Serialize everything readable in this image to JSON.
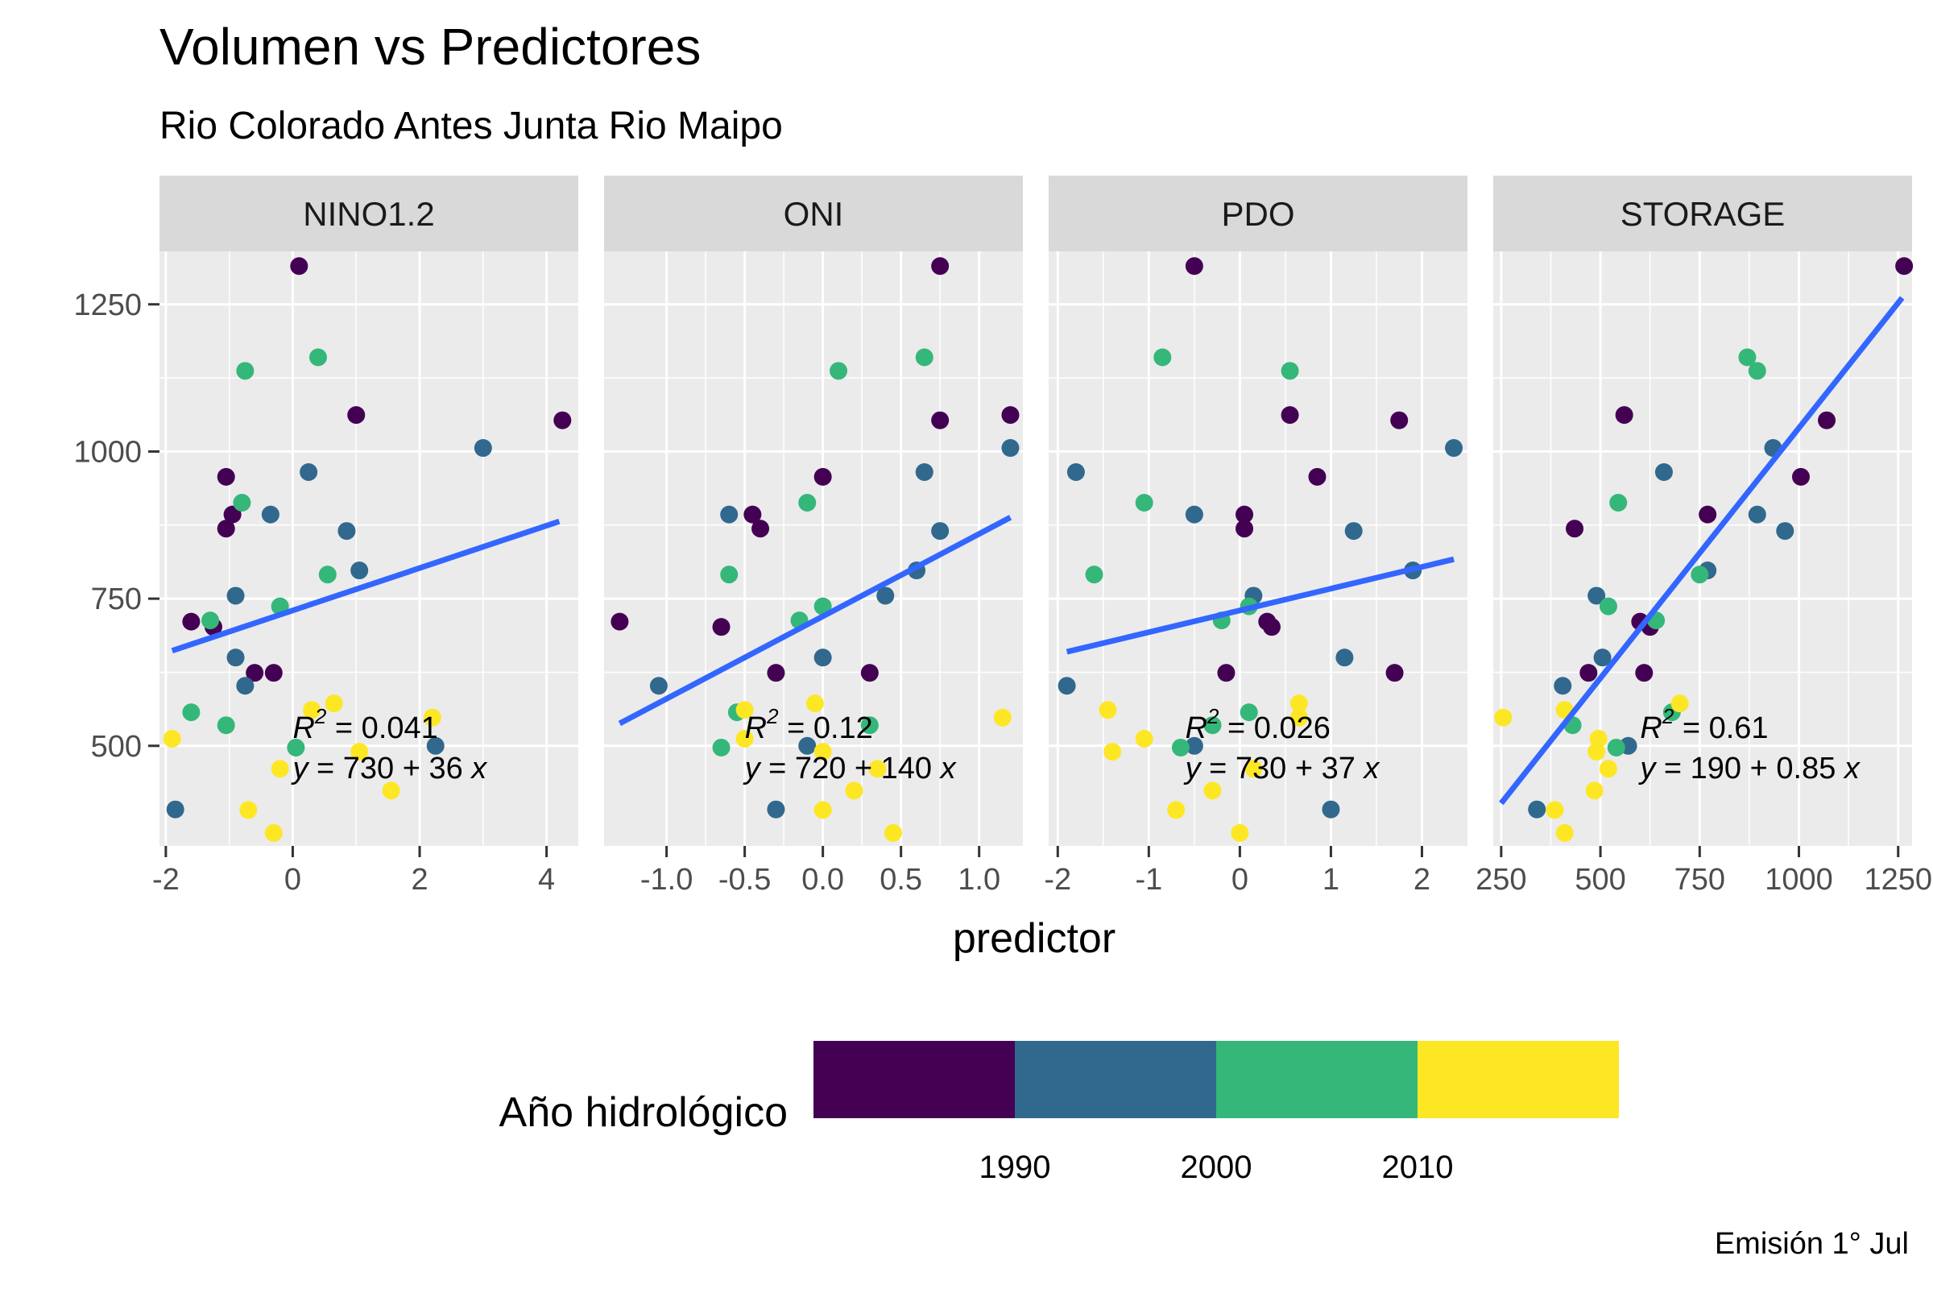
{
  "chart_data": {
    "type": "scatter",
    "title": "Volumen vs Predictores",
    "subtitle": "Rio Colorado Antes Junta Rio Maipo",
    "xlabel": "predictor",
    "ylabel": "",
    "caption": "Emisión 1° Jul",
    "ylim": [
      330,
      1340
    ],
    "yticks": [
      500,
      750,
      1000,
      1250
    ],
    "ytick_labels": [
      "500",
      "750",
      "1000",
      "1250"
    ],
    "grid": true,
    "colors": {
      "c1980": "#440154",
      "c1990": "#31688e",
      "c2000": "#35b779",
      "c2010": "#fde725",
      "line": "#3366ff",
      "panel": "#ebebeb",
      "strip": "#d9d9d9"
    },
    "legend": {
      "title": "Año hidrológico",
      "placement": "bottom",
      "breaks": [
        "1990",
        "2000",
        "2010"
      ],
      "bins": [
        "c1980",
        "c1990",
        "c2000",
        "c2010"
      ]
    },
    "panels": [
      {
        "name": "NINO1.2",
        "xlim": [
          -2.1,
          4.5
        ],
        "xticks": [
          -2,
          0,
          2,
          4
        ],
        "xtick_labels": [
          "-2",
          "0",
          "2",
          "4"
        ],
        "fit_x": [
          -1.9,
          4.2
        ],
        "intercept": 730,
        "slope": 36,
        "r2_label": "= 0.041",
        "eq_label": "= 730 + 36 x",
        "annot_x": 0.0,
        "points": [
          {
            "x": 0.1,
            "y": 1315,
            "c": "c1980"
          },
          {
            "x": 4.25,
            "y": 1053,
            "c": "c1980"
          },
          {
            "x": 1.0,
            "y": 1062,
            "c": "c1980"
          },
          {
            "x": -1.05,
            "y": 957,
            "c": "c1980"
          },
          {
            "x": -0.95,
            "y": 893,
            "c": "c1980"
          },
          {
            "x": -1.05,
            "y": 869,
            "c": "c1980"
          },
          {
            "x": -1.6,
            "y": 711,
            "c": "c1980"
          },
          {
            "x": -1.25,
            "y": 702,
            "c": "c1980"
          },
          {
            "x": -0.6,
            "y": 624,
            "c": "c1980"
          },
          {
            "x": -0.3,
            "y": 624,
            "c": "c1980"
          },
          {
            "x": 3.0,
            "y": 1006,
            "c": "c1990"
          },
          {
            "x": 0.25,
            "y": 965,
            "c": "c1990"
          },
          {
            "x": -0.35,
            "y": 893,
            "c": "c1990"
          },
          {
            "x": 0.85,
            "y": 865,
            "c": "c1990"
          },
          {
            "x": 1.05,
            "y": 798,
            "c": "c1990"
          },
          {
            "x": -0.9,
            "y": 755,
            "c": "c1990"
          },
          {
            "x": -0.9,
            "y": 650,
            "c": "c1990"
          },
          {
            "x": -0.75,
            "y": 602,
            "c": "c1990"
          },
          {
            "x": 2.25,
            "y": 500,
            "c": "c1990"
          },
          {
            "x": -1.85,
            "y": 392,
            "c": "c1990"
          },
          {
            "x": 0.4,
            "y": 1160,
            "c": "c2000"
          },
          {
            "x": -0.75,
            "y": 1137,
            "c": "c2000"
          },
          {
            "x": -0.8,
            "y": 913,
            "c": "c2000"
          },
          {
            "x": 0.55,
            "y": 791,
            "c": "c2000"
          },
          {
            "x": -0.2,
            "y": 737,
            "c": "c2000"
          },
          {
            "x": -1.3,
            "y": 713,
            "c": "c2000"
          },
          {
            "x": -1.6,
            "y": 557,
            "c": "c2000"
          },
          {
            "x": -1.05,
            "y": 535,
            "c": "c2000"
          },
          {
            "x": 0.05,
            "y": 497,
            "c": "c2000"
          },
          {
            "x": 0.65,
            "y": 572,
            "c": "c2010"
          },
          {
            "x": 0.3,
            "y": 561,
            "c": "c2010"
          },
          {
            "x": 2.2,
            "y": 548,
            "c": "c2010"
          },
          {
            "x": -1.9,
            "y": 512,
            "c": "c2010"
          },
          {
            "x": 1.05,
            "y": 490,
            "c": "c2010"
          },
          {
            "x": -0.2,
            "y": 461,
            "c": "c2010"
          },
          {
            "x": 1.55,
            "y": 424,
            "c": "c2010"
          },
          {
            "x": -0.7,
            "y": 391,
            "c": "c2010"
          },
          {
            "x": -0.3,
            "y": 352,
            "c": "c2010"
          }
        ]
      },
      {
        "name": "ONI",
        "xlim": [
          -1.4,
          1.28
        ],
        "xticks": [
          -1.0,
          -0.5,
          0.0,
          0.5,
          1.0
        ],
        "xtick_labels": [
          "-1.0",
          "-0.5",
          "0.0",
          "0.5",
          "1.0"
        ],
        "fit_x": [
          -1.3,
          1.2
        ],
        "intercept": 720,
        "slope": 140,
        "r2_label": "= 0.12",
        "eq_label": "= 720 + 140 x",
        "annot_x": -0.5,
        "points": [
          {
            "x": 0.75,
            "y": 1315,
            "c": "c1980"
          },
          {
            "x": 1.2,
            "y": 1062,
            "c": "c1980"
          },
          {
            "x": 0.75,
            "y": 1053,
            "c": "c1980"
          },
          {
            "x": 0.0,
            "y": 957,
            "c": "c1980"
          },
          {
            "x": -0.45,
            "y": 893,
            "c": "c1980"
          },
          {
            "x": -0.4,
            "y": 869,
            "c": "c1980"
          },
          {
            "x": -1.3,
            "y": 711,
            "c": "c1980"
          },
          {
            "x": -0.65,
            "y": 702,
            "c": "c1980"
          },
          {
            "x": -0.3,
            "y": 624,
            "c": "c1980"
          },
          {
            "x": 0.3,
            "y": 624,
            "c": "c1980"
          },
          {
            "x": 1.2,
            "y": 1006,
            "c": "c1990"
          },
          {
            "x": 0.65,
            "y": 965,
            "c": "c1990"
          },
          {
            "x": -0.6,
            "y": 893,
            "c": "c1990"
          },
          {
            "x": 0.75,
            "y": 865,
            "c": "c1990"
          },
          {
            "x": 0.6,
            "y": 798,
            "c": "c1990"
          },
          {
            "x": 0.4,
            "y": 755,
            "c": "c1990"
          },
          {
            "x": 0.0,
            "y": 650,
            "c": "c1990"
          },
          {
            "x": -1.05,
            "y": 602,
            "c": "c1990"
          },
          {
            "x": -0.1,
            "y": 500,
            "c": "c1990"
          },
          {
            "x": -0.3,
            "y": 392,
            "c": "c1990"
          },
          {
            "x": 0.65,
            "y": 1160,
            "c": "c2000"
          },
          {
            "x": 0.1,
            "y": 1137,
            "c": "c2000"
          },
          {
            "x": -0.1,
            "y": 913,
            "c": "c2000"
          },
          {
            "x": -0.6,
            "y": 791,
            "c": "c2000"
          },
          {
            "x": 0.0,
            "y": 737,
            "c": "c2000"
          },
          {
            "x": -0.15,
            "y": 713,
            "c": "c2000"
          },
          {
            "x": -0.55,
            "y": 557,
            "c": "c2000"
          },
          {
            "x": 0.3,
            "y": 535,
            "c": "c2000"
          },
          {
            "x": -0.65,
            "y": 497,
            "c": "c2000"
          },
          {
            "x": -0.05,
            "y": 572,
            "c": "c2010"
          },
          {
            "x": -0.5,
            "y": 561,
            "c": "c2010"
          },
          {
            "x": 1.15,
            "y": 548,
            "c": "c2010"
          },
          {
            "x": -0.5,
            "y": 512,
            "c": "c2010"
          },
          {
            "x": 0.0,
            "y": 490,
            "c": "c2010"
          },
          {
            "x": 0.35,
            "y": 461,
            "c": "c2010"
          },
          {
            "x": 0.2,
            "y": 424,
            "c": "c2010"
          },
          {
            "x": 0.0,
            "y": 391,
            "c": "c2010"
          },
          {
            "x": 0.45,
            "y": 352,
            "c": "c2010"
          }
        ]
      },
      {
        "name": "PDO",
        "xlim": [
          -2.1,
          2.5
        ],
        "xticks": [
          -2,
          -1,
          0,
          1,
          2
        ],
        "xtick_labels": [
          "-2",
          "-1",
          "0",
          "1",
          "2"
        ],
        "fit_x": [
          -1.9,
          2.35
        ],
        "intercept": 730,
        "slope": 37,
        "r2_label": "= 0.026",
        "eq_label": "= 730 + 37 x",
        "annot_x": -0.6,
        "points": [
          {
            "x": -0.5,
            "y": 1315,
            "c": "c1980"
          },
          {
            "x": 1.75,
            "y": 1053,
            "c": "c1980"
          },
          {
            "x": 0.55,
            "y": 1062,
            "c": "c1980"
          },
          {
            "x": 0.85,
            "y": 957,
            "c": "c1980"
          },
          {
            "x": 0.05,
            "y": 893,
            "c": "c1980"
          },
          {
            "x": 0.05,
            "y": 869,
            "c": "c1980"
          },
          {
            "x": 0.3,
            "y": 711,
            "c": "c1980"
          },
          {
            "x": 0.35,
            "y": 702,
            "c": "c1980"
          },
          {
            "x": -0.15,
            "y": 624,
            "c": "c1980"
          },
          {
            "x": 1.7,
            "y": 624,
            "c": "c1980"
          },
          {
            "x": 2.35,
            "y": 1006,
            "c": "c1990"
          },
          {
            "x": -1.8,
            "y": 965,
            "c": "c1990"
          },
          {
            "x": -0.5,
            "y": 893,
            "c": "c1990"
          },
          {
            "x": 1.25,
            "y": 865,
            "c": "c1990"
          },
          {
            "x": 1.9,
            "y": 798,
            "c": "c1990"
          },
          {
            "x": 0.15,
            "y": 755,
            "c": "c1990"
          },
          {
            "x": 1.15,
            "y": 650,
            "c": "c1990"
          },
          {
            "x": -1.9,
            "y": 602,
            "c": "c1990"
          },
          {
            "x": -0.5,
            "y": 500,
            "c": "c1990"
          },
          {
            "x": 1.0,
            "y": 392,
            "c": "c1990"
          },
          {
            "x": -0.85,
            "y": 1160,
            "c": "c2000"
          },
          {
            "x": 0.55,
            "y": 1137,
            "c": "c2000"
          },
          {
            "x": -1.05,
            "y": 913,
            "c": "c2000"
          },
          {
            "x": -1.6,
            "y": 791,
            "c": "c2000"
          },
          {
            "x": 0.1,
            "y": 737,
            "c": "c2000"
          },
          {
            "x": -0.2,
            "y": 713,
            "c": "c2000"
          },
          {
            "x": 0.1,
            "y": 557,
            "c": "c2000"
          },
          {
            "x": -0.3,
            "y": 535,
            "c": "c2000"
          },
          {
            "x": -0.65,
            "y": 497,
            "c": "c2000"
          },
          {
            "x": 0.65,
            "y": 572,
            "c": "c2010"
          },
          {
            "x": -1.45,
            "y": 561,
            "c": "c2010"
          },
          {
            "x": 0.65,
            "y": 548,
            "c": "c2010"
          },
          {
            "x": -1.05,
            "y": 512,
            "c": "c2010"
          },
          {
            "x": -1.4,
            "y": 490,
            "c": "c2010"
          },
          {
            "x": 0.15,
            "y": 461,
            "c": "c2010"
          },
          {
            "x": -0.3,
            "y": 424,
            "c": "c2010"
          },
          {
            "x": -0.7,
            "y": 391,
            "c": "c2010"
          },
          {
            "x": 0.0,
            "y": 352,
            "c": "c2010"
          }
        ]
      },
      {
        "name": "STORAGE",
        "xlim": [
          230,
          1285
        ],
        "xticks": [
          250,
          500,
          750,
          1000,
          1250
        ],
        "xtick_labels": [
          "250",
          "500",
          "750",
          "1000",
          "1250"
        ],
        "fit_x": [
          250,
          1260
        ],
        "intercept": 190,
        "slope": 0.85,
        "r2_label": "= 0.61",
        "eq_label": "= 190 + 0.85 x",
        "annot_x": 600,
        "points": [
          {
            "x": 1265,
            "y": 1315,
            "c": "c1980"
          },
          {
            "x": 1070,
            "y": 1053,
            "c": "c1980"
          },
          {
            "x": 560,
            "y": 1062,
            "c": "c1980"
          },
          {
            "x": 1005,
            "y": 957,
            "c": "c1980"
          },
          {
            "x": 770,
            "y": 893,
            "c": "c1980"
          },
          {
            "x": 435,
            "y": 869,
            "c": "c1980"
          },
          {
            "x": 600,
            "y": 711,
            "c": "c1980"
          },
          {
            "x": 625,
            "y": 702,
            "c": "c1980"
          },
          {
            "x": 470,
            "y": 624,
            "c": "c1980"
          },
          {
            "x": 610,
            "y": 624,
            "c": "c1980"
          },
          {
            "x": 935,
            "y": 1006,
            "c": "c1990"
          },
          {
            "x": 660,
            "y": 965,
            "c": "c1990"
          },
          {
            "x": 895,
            "y": 893,
            "c": "c1990"
          },
          {
            "x": 965,
            "y": 865,
            "c": "c1990"
          },
          {
            "x": 770,
            "y": 798,
            "c": "c1990"
          },
          {
            "x": 490,
            "y": 755,
            "c": "c1990"
          },
          {
            "x": 505,
            "y": 650,
            "c": "c1990"
          },
          {
            "x": 405,
            "y": 602,
            "c": "c1990"
          },
          {
            "x": 570,
            "y": 500,
            "c": "c1990"
          },
          {
            "x": 340,
            "y": 392,
            "c": "c1990"
          },
          {
            "x": 870,
            "y": 1160,
            "c": "c2000"
          },
          {
            "x": 895,
            "y": 1137,
            "c": "c2000"
          },
          {
            "x": 545,
            "y": 913,
            "c": "c2000"
          },
          {
            "x": 750,
            "y": 791,
            "c": "c2000"
          },
          {
            "x": 520,
            "y": 737,
            "c": "c2000"
          },
          {
            "x": 640,
            "y": 713,
            "c": "c2000"
          },
          {
            "x": 680,
            "y": 557,
            "c": "c2000"
          },
          {
            "x": 430,
            "y": 535,
            "c": "c2000"
          },
          {
            "x": 540,
            "y": 497,
            "c": "c2000"
          },
          {
            "x": 700,
            "y": 572,
            "c": "c2010"
          },
          {
            "x": 410,
            "y": 561,
            "c": "c2010"
          },
          {
            "x": 255,
            "y": 548,
            "c": "c2010"
          },
          {
            "x": 495,
            "y": 512,
            "c": "c2010"
          },
          {
            "x": 490,
            "y": 490,
            "c": "c2010"
          },
          {
            "x": 520,
            "y": 461,
            "c": "c2010"
          },
          {
            "x": 485,
            "y": 424,
            "c": "c2010"
          },
          {
            "x": 385,
            "y": 391,
            "c": "c2010"
          },
          {
            "x": 410,
            "y": 352,
            "c": "c2010"
          }
        ]
      }
    ]
  }
}
